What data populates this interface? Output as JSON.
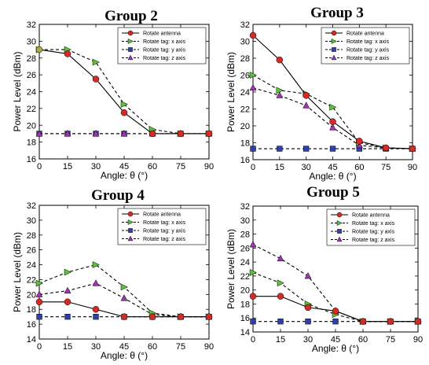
{
  "colors": {
    "rotate_antenna": "#d62b24",
    "tag_x": "#5dc23a",
    "tag_y": "#2f3fae",
    "tag_z": "#a035b4",
    "group2_overlap": "#a9a84a"
  },
  "chart_data": [
    {
      "type": "line",
      "title": "Group 2",
      "xlabel": "Angle: θ (°)",
      "ylabel": "Power Level (dBm)",
      "x": [
        0,
        15,
        30,
        45,
        60,
        75,
        90
      ],
      "xlim": [
        0,
        90
      ],
      "ylim": [
        16,
        32
      ],
      "xticks": [
        "0",
        "15",
        "30",
        "45",
        "60",
        "75",
        "90"
      ],
      "yticks": [
        "16",
        "18",
        "20",
        "22",
        "24",
        "26",
        "28",
        "30",
        "32"
      ],
      "legend_position": "top-right",
      "grid": false,
      "series": [
        {
          "name": "Rotate antenna",
          "values": [
            29,
            28.5,
            25.5,
            21.5,
            19,
            19,
            19
          ]
        },
        {
          "name": "Rotate tag: x axis",
          "values": [
            29,
            29,
            27.5,
            22.5,
            19.5,
            19,
            19
          ]
        },
        {
          "name": "Rotate tag: y axis",
          "values": [
            19,
            19,
            19,
            19,
            19,
            19,
            19
          ]
        },
        {
          "name": "Rotate tag: z axis",
          "values": [
            19,
            19,
            19,
            19,
            19,
            19,
            19
          ]
        }
      ]
    },
    {
      "type": "line",
      "title": "Group 3",
      "xlabel": "Angle: θ (°)",
      "ylabel": "Power Level (dBm)",
      "x": [
        0,
        15,
        30,
        45,
        60,
        75,
        90
      ],
      "xlim": [
        0,
        90
      ],
      "ylim": [
        16,
        32
      ],
      "xticks": [
        "0",
        "15",
        "30",
        "45",
        "60",
        "75",
        "90"
      ],
      "yticks": [
        "16",
        "18",
        "20",
        "22",
        "24",
        "26",
        "28",
        "30",
        "32"
      ],
      "legend_position": "top-right",
      "grid": false,
      "series": [
        {
          "name": "Rotate antenna",
          "values": [
            30.7,
            27.8,
            23.6,
            20.5,
            18.2,
            17.4,
            17.3
          ]
        },
        {
          "name": "Rotate tag: x axis",
          "values": [
            26,
            24.2,
            23.8,
            22.2,
            18,
            17.4,
            17.3
          ]
        },
        {
          "name": "Rotate tag: y axis",
          "values": [
            17.3,
            17.3,
            17.3,
            17.3,
            17.3,
            17.3,
            17.3
          ]
        },
        {
          "name": "Rotate tag: z axis",
          "values": [
            24.5,
            23.6,
            22.4,
            19.8,
            17.7,
            17.4,
            17.3
          ]
        }
      ]
    },
    {
      "type": "line",
      "title": "Group 4",
      "xlabel": "Angle: θ (°)",
      "ylabel": "Power Level (dBm)",
      "x": [
        0,
        15,
        30,
        45,
        60,
        75,
        90
      ],
      "xlim": [
        0,
        90
      ],
      "ylim": [
        14,
        32
      ],
      "xticks": [
        "0",
        "15",
        "30",
        "45",
        "60",
        "75",
        "90"
      ],
      "yticks": [
        "14",
        "16",
        "18",
        "20",
        "22",
        "24",
        "26",
        "28",
        "30",
        "32"
      ],
      "legend_position": "top-right",
      "grid": false,
      "series": [
        {
          "name": "Rotate antenna",
          "values": [
            19,
            19,
            18,
            17,
            17,
            17,
            17
          ]
        },
        {
          "name": "Rotate tag: x axis",
          "values": [
            21.5,
            23,
            24,
            21,
            17.5,
            17,
            17
          ]
        },
        {
          "name": "Rotate tag: y axis",
          "values": [
            17,
            17,
            17,
            17,
            17,
            17,
            17
          ]
        },
        {
          "name": "Rotate tag: z axis",
          "values": [
            20,
            20.5,
            21.5,
            19.5,
            17.3,
            17,
            17
          ]
        }
      ]
    },
    {
      "type": "line",
      "title": "Group 5",
      "xlabel": "Angle: θ (°)",
      "ylabel": "Power Level (dBm)",
      "x": [
        0,
        15,
        30,
        45,
        60,
        75,
        90
      ],
      "xlim": [
        0,
        90
      ],
      "ylim": [
        14,
        32
      ],
      "xticks": [
        "0",
        "15",
        "30",
        "45",
        "60",
        "75",
        "90"
      ],
      "yticks": [
        "14",
        "16",
        "18",
        "20",
        "22",
        "24",
        "26",
        "28",
        "30",
        "32"
      ],
      "legend_position": "top-right",
      "grid": false,
      "series": [
        {
          "name": "Rotate antenna",
          "values": [
            19.1,
            19.1,
            17.5,
            17,
            15.5,
            15.5,
            15.5
          ]
        },
        {
          "name": "Rotate tag: x axis",
          "values": [
            22.5,
            21,
            18,
            16.5,
            15.5,
            15.5,
            15.5
          ]
        },
        {
          "name": "Rotate tag: y axis",
          "values": [
            15.5,
            15.5,
            15.5,
            15.5,
            15.5,
            15.5,
            15.5
          ]
        },
        {
          "name": "Rotate tag: z axis",
          "values": [
            26.5,
            24.5,
            22,
            17,
            15.5,
            15.5,
            15.5
          ]
        }
      ]
    }
  ]
}
